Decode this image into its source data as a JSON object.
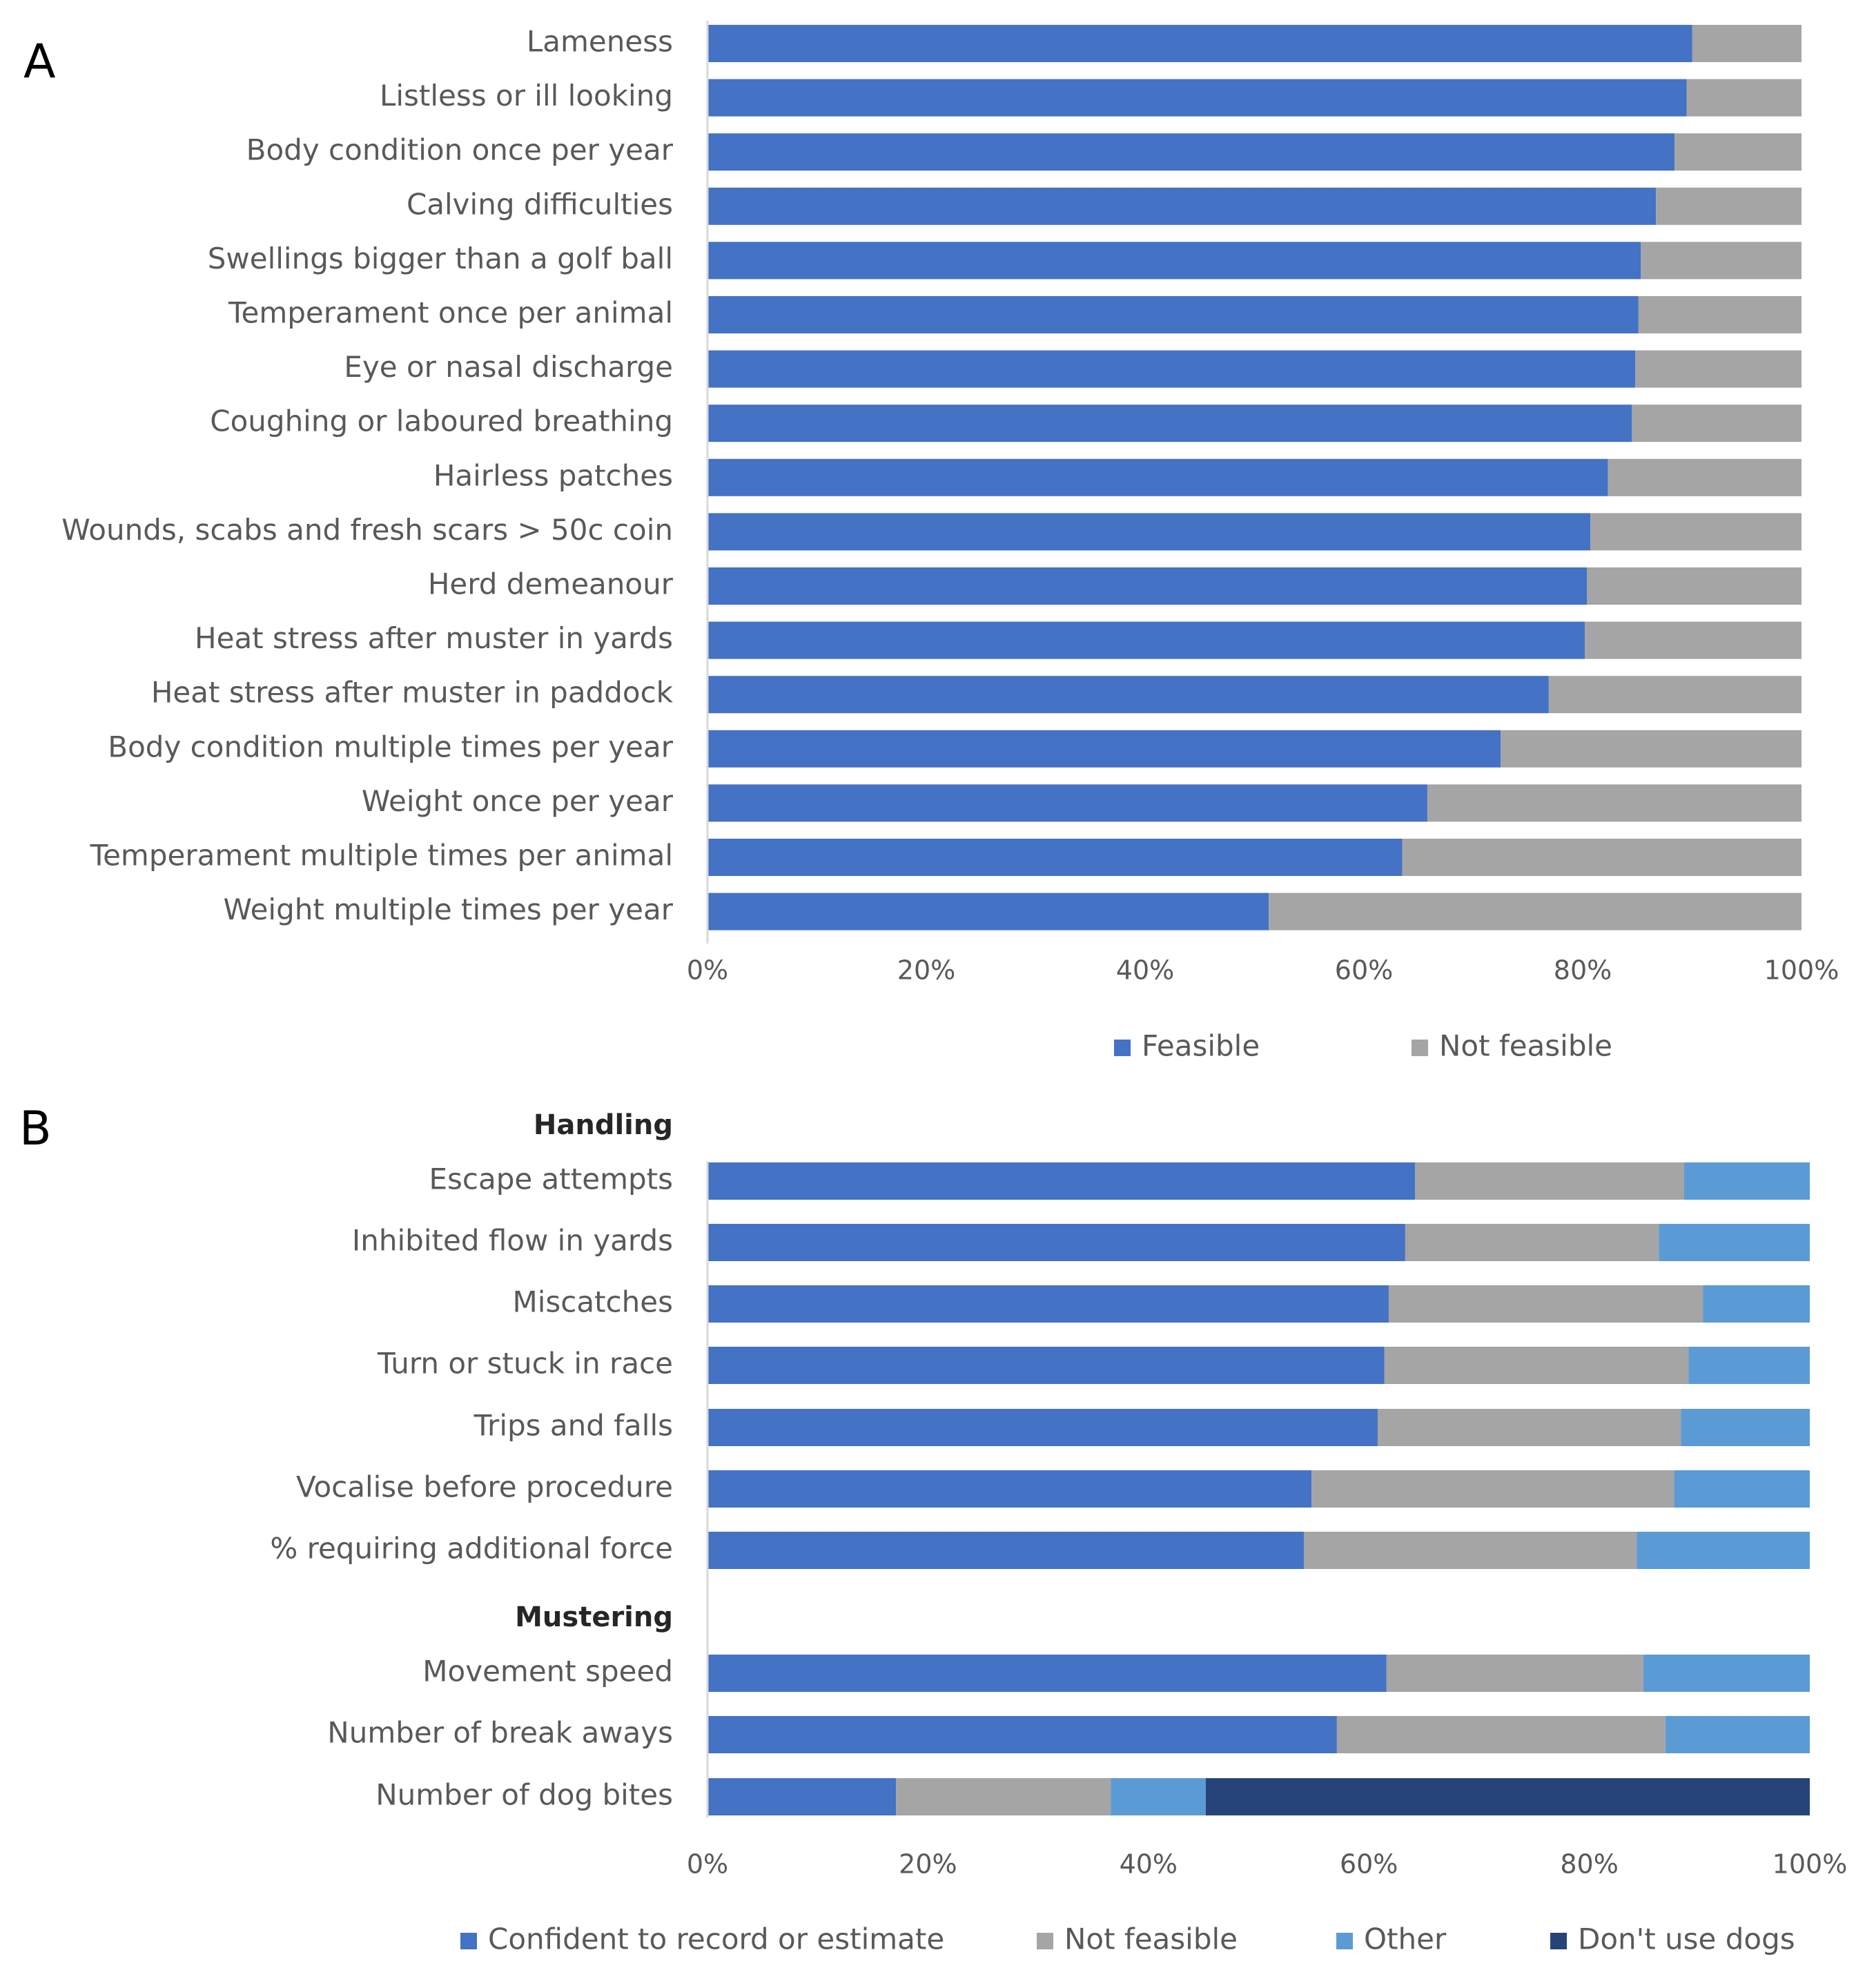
{
  "chart_data": [
    {
      "panel": "A",
      "type": "bar",
      "orientation": "horizontal",
      "stacked": true,
      "categories": [
        "Lameness",
        "Listless or ill looking",
        "Body condition once per year",
        "Calving difficulties",
        "Swellings bigger than a golf ball",
        "Temperament once per animal",
        "Eye or nasal discharge",
        "Coughing or laboured breathing",
        "Hairless patches",
        "Wounds, scabs and fresh scars > 50c coin",
        "Herd demeanour",
        "Heat stress after muster in yards",
        "Heat stress after muster in paddock",
        "Body condition multiple times per year",
        "Weight once per year",
        "Temperament multiple times per animal",
        "Weight multiple times per year"
      ],
      "series": [
        {
          "name": "Feasible",
          "color": "#4472c4",
          "values": [
            90,
            89.5,
            88.4,
            86.7,
            85.3,
            85.1,
            84.8,
            84.5,
            82.3,
            80.7,
            80.4,
            80.2,
            76.9,
            72.5,
            65.8,
            63.5,
            51.3
          ]
        },
        {
          "name": "Not feasible",
          "color": "#a5a5a5",
          "values": [
            10,
            10.5,
            11.6,
            13.3,
            14.7,
            14.9,
            15.2,
            15.5,
            17.7,
            19.3,
            19.6,
            19.8,
            23.1,
            27.5,
            34.2,
            36.5,
            48.7
          ]
        }
      ],
      "xticks": [
        "0%",
        "20%",
        "40%",
        "60%",
        "80%",
        "100%"
      ],
      "xlim": [
        0,
        100
      ],
      "legend": "bottom",
      "grid": false
    },
    {
      "panel": "B",
      "type": "bar",
      "orientation": "horizontal",
      "stacked": true,
      "groups": [
        {
          "name": "Handling",
          "categories": [
            "Escape attempts",
            "Inhibited flow in yards",
            "Miscatches",
            "Turn or stuck in race",
            "Trips and falls",
            "Vocalise before procedure",
            "% requiring additional force"
          ]
        },
        {
          "name": "Mustering",
          "categories": [
            "Movement speed",
            "Number of break aways",
            "Number of dog bites"
          ]
        }
      ],
      "series": [
        {
          "name": "Confident to record or estimate",
          "color": "#4472c4",
          "values": [
            64.2,
            63.3,
            61.8,
            61.4,
            60.8,
            54.8,
            54.1,
            61.6,
            57.1,
            17.1
          ]
        },
        {
          "name": "Not feasible",
          "color": "#a5a5a5",
          "values": [
            24.4,
            23.0,
            28.5,
            27.6,
            27.5,
            32.9,
            30.2,
            23.3,
            29.8,
            19.5
          ]
        },
        {
          "name": "Other",
          "color": "#5b9bd5",
          "values": [
            11.4,
            13.7,
            9.7,
            11.0,
            11.7,
            12.3,
            15.7,
            15.1,
            13.1,
            8.6
          ]
        },
        {
          "name": "Don't use dogs",
          "color": "#264478",
          "values": [
            0,
            0,
            0,
            0,
            0,
            0,
            0,
            0,
            0,
            54.8
          ]
        }
      ],
      "xticks": [
        "0%",
        "20%",
        "40%",
        "60%",
        "80%",
        "100%"
      ],
      "xlim": [
        0,
        100
      ],
      "legend": "bottom",
      "grid": false
    }
  ]
}
